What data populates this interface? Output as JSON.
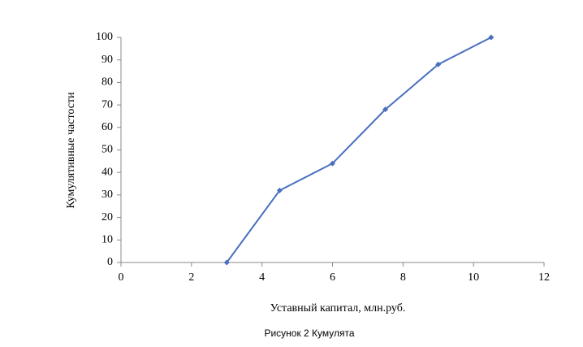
{
  "chart_data": {
    "type": "line",
    "x": [
      3,
      4.5,
      6,
      7.5,
      9,
      10.5
    ],
    "values": [
      0,
      32,
      44,
      68,
      88,
      100
    ],
    "color": "#4a6fc0",
    "xlabel": "Уставный капитал, млн.руб.",
    "ylabel": "Кумулятивные частости",
    "caption": "Рисунок 2 Кумулята",
    "xlim": [
      0,
      12
    ],
    "xticks": [
      0,
      2,
      4,
      6,
      8,
      10,
      12
    ],
    "ylim": [
      0,
      100
    ],
    "yticks": [
      0,
      10,
      20,
      30,
      40,
      50,
      60,
      70,
      80,
      90,
      100
    ],
    "grid": false
  }
}
